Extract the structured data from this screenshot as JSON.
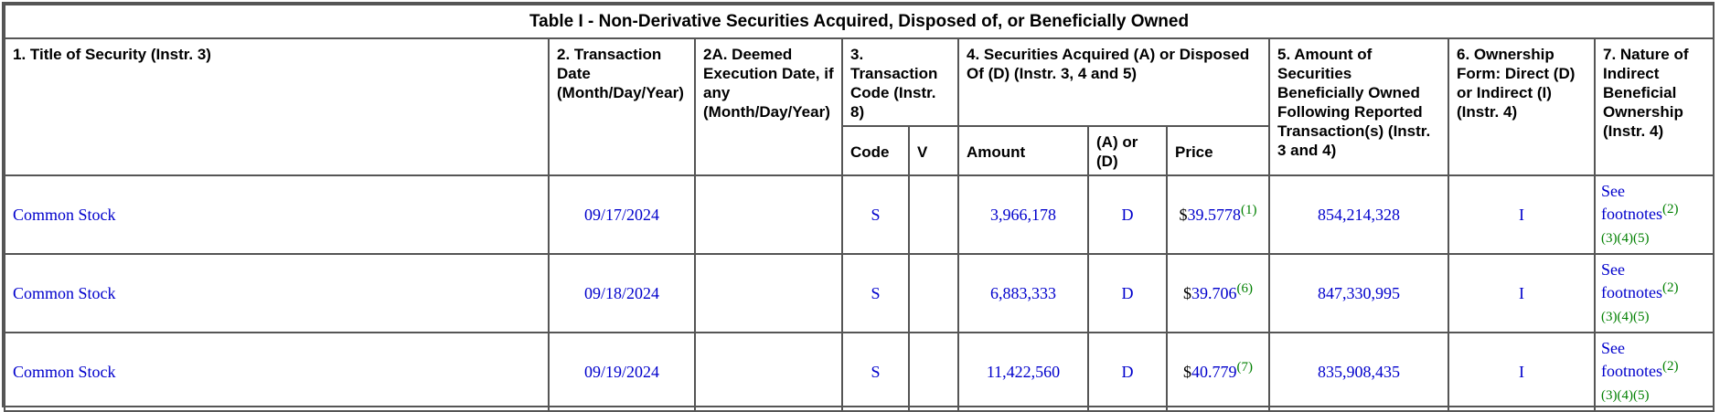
{
  "table": {
    "title": "Table I - Non-Derivative Securities Acquired, Disposed of, or Beneficially Owned",
    "headers": {
      "col1": "1. Title of Security (Instr. 3)",
      "col2": "2. Transaction Date (Month/Day/Year)",
      "col2a": "2A. Deemed Execution Date, if any (Month/Day/Year)",
      "col3": "3. Transaction Code (Instr. 8)",
      "col4": "4. Securities Acquired (A) or Disposed Of (D) (Instr. 3, 4 and 5)",
      "col5": "5. Amount of Securities Beneficially Owned Following Reported Transaction(s) (Instr. 3 and 4)",
      "col6": "6. Ownership Form: Direct (D) or Indirect (I) (Instr. 4)",
      "col7": "7. Nature of Indirect Beneficial Ownership (Instr. 4)",
      "sub_code": "Code",
      "sub_v": "V",
      "sub_amount": "Amount",
      "sub_ad": "(A) or (D)",
      "sub_price": "Price"
    },
    "rows": [
      {
        "title": "Common Stock",
        "date": "09/17/2024",
        "deemed": "",
        "code": "S",
        "v": "",
        "amount": "3,966,178",
        "ad": "D",
        "price_symbol": "$",
        "price": "39.5778",
        "price_fn": "(1)",
        "owned": "854,214,328",
        "form": "I",
        "nature_text1": "See",
        "nature_text2": "footnotes",
        "nature_fn1": "(2)",
        "nature_fn2": "(3)(4)(5)"
      },
      {
        "title": "Common Stock",
        "date": "09/18/2024",
        "deemed": "",
        "code": "S",
        "v": "",
        "amount": "6,883,333",
        "ad": "D",
        "price_symbol": "$",
        "price": "39.706",
        "price_fn": "(6)",
        "owned": "847,330,995",
        "form": "I",
        "nature_text1": "See",
        "nature_text2": "footnotes",
        "nature_fn1": "(2)",
        "nature_fn2": "(3)(4)(5)"
      },
      {
        "title": "Common Stock",
        "date": "09/19/2024",
        "deemed": "",
        "code": "S",
        "v": "",
        "amount": "11,422,560",
        "ad": "D",
        "price_symbol": "$",
        "price": "40.779",
        "price_fn": "(7)",
        "owned": "835,908,435",
        "form": "I",
        "nature_text1": "See",
        "nature_text2": "footnotes",
        "nature_fn1": "(2)",
        "nature_fn2": "(3)(4)(5)"
      }
    ]
  },
  "colors": {
    "border": "#555555",
    "link_blue": "#0000cc",
    "footnote_green": "#008000"
  }
}
